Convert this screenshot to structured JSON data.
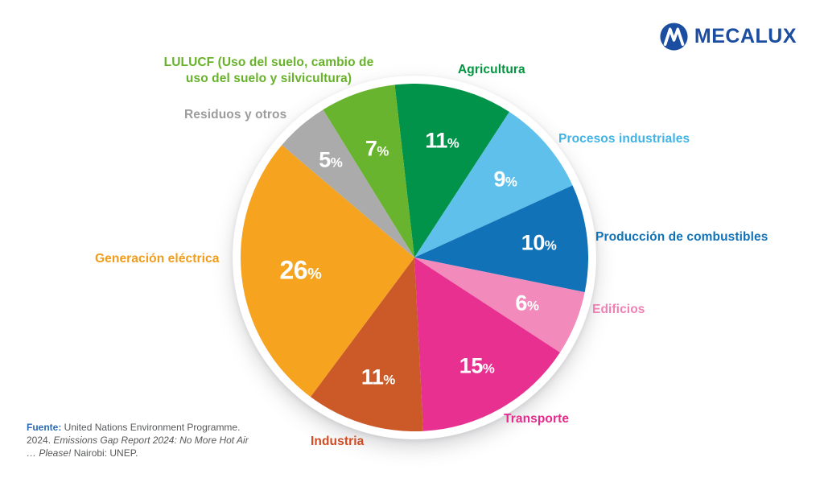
{
  "brand": {
    "name": "MECALUX",
    "color": "#1b4da1"
  },
  "chart_data": {
    "type": "pie",
    "title": "",
    "unit": "%",
    "start_angle_deg": -6.5,
    "legend_position": "around",
    "slices": [
      {
        "id": "agricultura",
        "label": "Agricultura",
        "value": 11,
        "color": "#009349",
        "label_color": "#00953f",
        "label_r": 0.69
      },
      {
        "id": "procesos",
        "label": "Procesos industriales",
        "value": 9,
        "color": "#5fc0eb",
        "label_color": "#3fb3e6",
        "label_r": 0.69
      },
      {
        "id": "produccion",
        "label": "Producción de combustibles",
        "value": 10,
        "color": "#1172b8",
        "label_color": "#1172b8",
        "label_r": 0.72
      },
      {
        "id": "edificios",
        "label": "Edificios",
        "value": 6,
        "color": "#f28abb",
        "label_color": "#ef81b5",
        "label_r": 0.7
      },
      {
        "id": "transporte",
        "label": "Transporte",
        "value": 15,
        "color": "#e73090",
        "label_color": "#e52a8d",
        "label_r": 0.72
      },
      {
        "id": "industria",
        "label": "Industria",
        "value": 11,
        "color": "#cb5a28",
        "label_color": "#d04b22",
        "label_r": 0.72
      },
      {
        "id": "generacion",
        "label": "Generación eléctrica",
        "value": 26,
        "color": "#f6a41f",
        "label_color": "#f29c19",
        "label_r": 0.66
      },
      {
        "id": "residuos",
        "label": "Residuos y otros",
        "value": 5,
        "color": "#ababab",
        "label_color": "#9c9c9c",
        "label_r": 0.74
      },
      {
        "id": "lulucf",
        "label": "LULUCF (Uso del suelo, cambio de uso del suelo y silvicultura)",
        "value": 7,
        "color": "#68b42e",
        "label_color": "#67b22a",
        "label_r": 0.66
      }
    ]
  },
  "footer": {
    "source_label": "Fuente:",
    "text_before_italic": " United Nations Environment Programme. 2024. ",
    "italic_text": "Emissions Gap Report 2024: No More Hot Air … Please!",
    "text_after_italic": " Nairobi: UNEP."
  }
}
